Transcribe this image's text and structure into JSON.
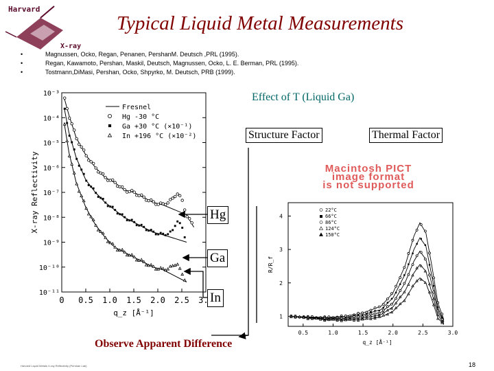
{
  "slide": {
    "title": "Typical Liquid Metal Measurements",
    "page_number": "18",
    "footnote": "Harvard Liquid Metals X-ray Reflectivity (Pershan Lab)",
    "logo": {
      "top_text": "Harvard",
      "bottom_text": "X-ray"
    },
    "references": [
      "Magnussen, Ocko, Regan, Penanen, PershanM. Deutsch ,PRL (1995).",
      "Regan, Kawamoto, Pershan, Maskil, Deutsch, Magnussen, Ocko, L. E. Berman, PRL (1995).",
      "Tostmann,DiMasi, Pershan, Ocko, Shpyrko, M. Deutsch, PRB (1999)."
    ],
    "effect_label": "Effect of T (Liquid Ga)",
    "structure_factor_label": "Structure Factor",
    "thermal_factor_label": "Thermal Factor",
    "pict_notice": [
      "Macintosh PICT",
      "image format",
      "is not supported"
    ],
    "curve_labels": {
      "hg": "Hg",
      "ga": "Ga",
      "in": "In"
    },
    "observe_text": "Observe Apparent Difference"
  },
  "colors": {
    "title": "#800000",
    "effect": "#006666",
    "observe": "#800000",
    "pict": "#e05a5a"
  },
  "chart_data": [
    {
      "type": "line",
      "xlabel": "q_z [Å⁻¹]",
      "ylabel": "X-ray Reflectivity",
      "xlim": [
        0,
        3.0
      ],
      "ylim_log10": [
        -11,
        -3
      ],
      "x_ticks": [
        "0",
        "0.5",
        "1.0",
        "1.5",
        "2.0",
        "2.5",
        "3.0"
      ],
      "y_ticks": [
        "10⁻³",
        "10⁻⁴",
        "10⁻⁵",
        "10⁻⁶",
        "10⁻⁷",
        "10⁻⁸",
        "10⁻⁹",
        "10⁻¹⁰",
        "10⁻¹¹"
      ],
      "legend": [
        {
          "symbol": "line",
          "text": "Fresnel"
        },
        {
          "symbol": "circle",
          "text": "Hg  -30 °C"
        },
        {
          "symbol": "square",
          "text": "Ga  +30 °C (×10⁻¹)"
        },
        {
          "symbol": "triangle",
          "text": "In  +196 °C (×10⁻²)"
        }
      ],
      "legend_position": "top-right",
      "series": [
        {
          "name": "Hg",
          "marker": "circle",
          "points": [
            [
              0.05,
              -3.2
            ],
            [
              0.15,
              -3.9
            ],
            [
              0.3,
              -4.8
            ],
            [
              0.5,
              -5.5
            ],
            [
              0.7,
              -6.0
            ],
            [
              0.9,
              -6.4
            ],
            [
              1.1,
              -6.6
            ],
            [
              1.3,
              -6.9
            ],
            [
              1.5,
              -7.0
            ],
            [
              1.7,
              -7.2
            ],
            [
              1.9,
              -7.4
            ],
            [
              2.1,
              -7.5
            ],
            [
              2.3,
              -7.3
            ],
            [
              2.4,
              -7.0
            ],
            [
              2.5,
              -7.3
            ],
            [
              2.6,
              -7.9
            ],
            [
              2.75,
              -8.4
            ]
          ]
        },
        {
          "name": "Ga",
          "marker": "square",
          "points": [
            [
              0.05,
              -3.6
            ],
            [
              0.15,
              -4.6
            ],
            [
              0.3,
              -5.6
            ],
            [
              0.5,
              -6.5
            ],
            [
              0.7,
              -7.0
            ],
            [
              0.9,
              -7.4
            ],
            [
              1.1,
              -7.7
            ],
            [
              1.3,
              -8.0
            ],
            [
              1.5,
              -8.2
            ],
            [
              1.7,
              -8.4
            ],
            [
              1.9,
              -8.6
            ],
            [
              2.1,
              -8.7
            ],
            [
              2.3,
              -8.6
            ],
            [
              2.4,
              -8.1
            ],
            [
              2.5,
              -8.4
            ],
            [
              2.6,
              -9.0
            ]
          ]
        },
        {
          "name": "In",
          "marker": "triangle",
          "points": [
            [
              0.05,
              -4.2
            ],
            [
              0.15,
              -5.4
            ],
            [
              0.3,
              -6.6
            ],
            [
              0.5,
              -7.6
            ],
            [
              0.7,
              -8.3
            ],
            [
              0.9,
              -8.8
            ],
            [
              1.1,
              -9.2
            ],
            [
              1.3,
              -9.4
            ],
            [
              1.5,
              -9.6
            ],
            [
              1.7,
              -9.8
            ],
            [
              1.9,
              -10.0
            ],
            [
              2.1,
              -10.1
            ],
            [
              2.3,
              -10.0
            ],
            [
              2.4,
              -9.8
            ],
            [
              2.5,
              -10.3
            ],
            [
              2.6,
              -10.6
            ]
          ]
        }
      ]
    },
    {
      "type": "line",
      "xlabel": "q_z [Å⁻¹]",
      "ylabel": "R/R_f",
      "xlim": [
        0.25,
        3.0
      ],
      "ylim": [
        0.7,
        4.4
      ],
      "x_ticks": [
        "0.5",
        "1.0",
        "1.5",
        "2.0",
        "2.5",
        "3.0"
      ],
      "y_ticks": [
        "1",
        "2",
        "3",
        "4"
      ],
      "legend": [
        {
          "symbol": "circle",
          "text": "22°C"
        },
        {
          "symbol": "square",
          "text": "66°C"
        },
        {
          "symbol": "circle",
          "text": "86°C"
        },
        {
          "symbol": "triangle",
          "text": "124°C"
        },
        {
          "symbol": "triangle",
          "text": "150°C"
        }
      ],
      "legend_position": "top-left",
      "series": [
        {
          "name": "22°C",
          "marker": "circle",
          "points": [
            [
              0.3,
              1.0
            ],
            [
              0.6,
              0.98
            ],
            [
              0.9,
              0.97
            ],
            [
              1.2,
              1.0
            ],
            [
              1.5,
              1.1
            ],
            [
              1.8,
              1.3
            ],
            [
              2.0,
              1.7
            ],
            [
              2.2,
              2.5
            ],
            [
              2.35,
              3.4
            ],
            [
              2.45,
              3.8
            ],
            [
              2.55,
              3.5
            ],
            [
              2.65,
              2.5
            ],
            [
              2.75,
              1.4
            ],
            [
              2.85,
              0.9
            ]
          ]
        },
        {
          "name": "66°C",
          "marker": "square",
          "points": [
            [
              0.3,
              1.0
            ],
            [
              0.6,
              0.97
            ],
            [
              0.9,
              0.95
            ],
            [
              1.2,
              0.97
            ],
            [
              1.5,
              1.05
            ],
            [
              1.8,
              1.2
            ],
            [
              2.0,
              1.55
            ],
            [
              2.2,
              2.25
            ],
            [
              2.35,
              3.0
            ],
            [
              2.45,
              3.35
            ],
            [
              2.55,
              3.1
            ],
            [
              2.65,
              2.2
            ],
            [
              2.75,
              1.25
            ],
            [
              2.85,
              0.85
            ]
          ]
        },
        {
          "name": "86°C",
          "marker": "circle",
          "points": [
            [
              0.3,
              1.0
            ],
            [
              0.6,
              0.96
            ],
            [
              0.9,
              0.93
            ],
            [
              1.2,
              0.94
            ],
            [
              1.5,
              1.0
            ],
            [
              1.8,
              1.12
            ],
            [
              2.0,
              1.4
            ],
            [
              2.2,
              2.0
            ],
            [
              2.35,
              2.65
            ],
            [
              2.45,
              2.95
            ],
            [
              2.55,
              2.7
            ],
            [
              2.65,
              1.95
            ],
            [
              2.75,
              1.15
            ],
            [
              2.85,
              0.82
            ]
          ]
        },
        {
          "name": "124°C",
          "marker": "triangle",
          "points": [
            [
              0.3,
              1.0
            ],
            [
              0.6,
              0.95
            ],
            [
              0.9,
              0.91
            ],
            [
              1.2,
              0.91
            ],
            [
              1.5,
              0.95
            ],
            [
              1.8,
              1.05
            ],
            [
              2.0,
              1.28
            ],
            [
              2.2,
              1.75
            ],
            [
              2.35,
              2.3
            ],
            [
              2.45,
              2.55
            ],
            [
              2.55,
              2.35
            ],
            [
              2.65,
              1.7
            ],
            [
              2.75,
              1.05
            ],
            [
              2.85,
              0.78
            ]
          ]
        },
        {
          "name": "150°C",
          "marker": "triangle",
          "points": [
            [
              0.3,
              1.0
            ],
            [
              0.6,
              0.94
            ],
            [
              0.9,
              0.89
            ],
            [
              1.2,
              0.88
            ],
            [
              1.5,
              0.9
            ],
            [
              1.8,
              0.98
            ],
            [
              2.0,
              1.15
            ],
            [
              2.2,
              1.5
            ],
            [
              2.35,
              1.95
            ],
            [
              2.45,
              2.15
            ],
            [
              2.55,
              2.0
            ],
            [
              2.65,
              1.5
            ],
            [
              2.75,
              0.95
            ],
            [
              2.85,
              0.75
            ]
          ]
        }
      ]
    }
  ]
}
